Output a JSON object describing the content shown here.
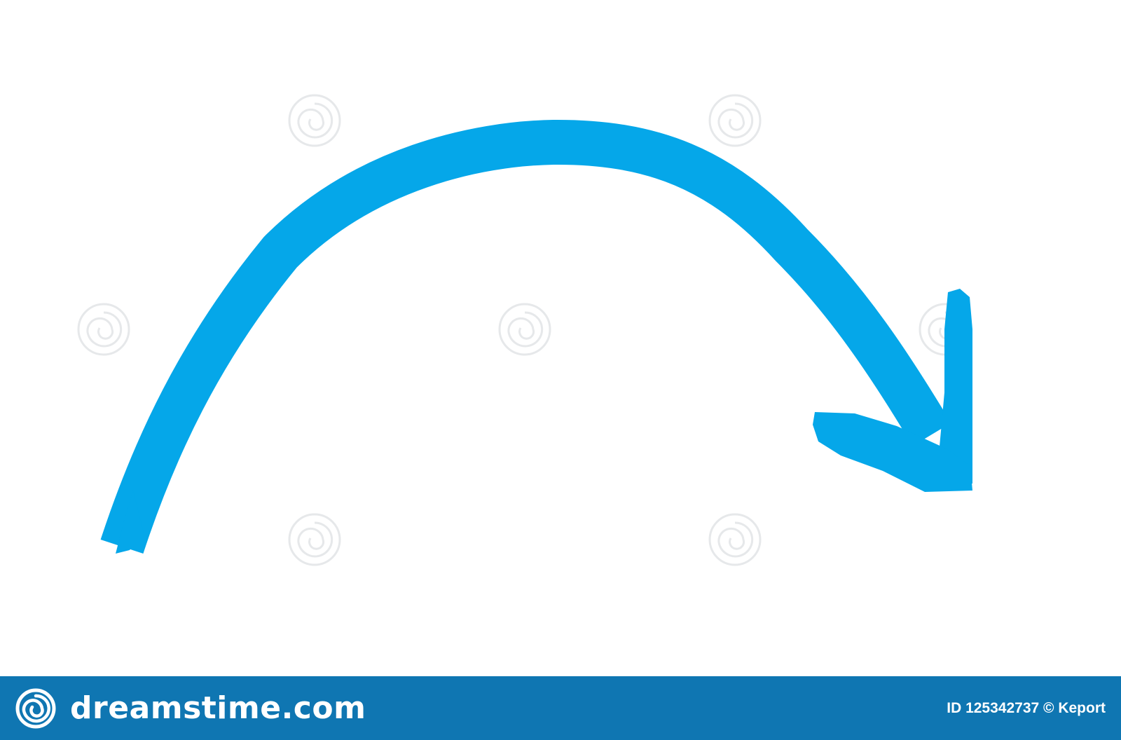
{
  "colors": {
    "arrow": "#05a7e9",
    "footer_background": "#0f76b2",
    "footer_text": "#ffffff",
    "canvas_background": "#ffffff",
    "watermark": "#e6e8ea"
  },
  "artwork": {
    "subject": "curved arrow",
    "icon": "curved-arrow-right-icon"
  },
  "watermark": {
    "brand_text": "dreamstime",
    "icon": "spiral-icon"
  },
  "footer": {
    "logo_icon": "spiral-icon",
    "wordmark": "dreamstime.com",
    "credit": "ID 125342737 © Keport"
  }
}
